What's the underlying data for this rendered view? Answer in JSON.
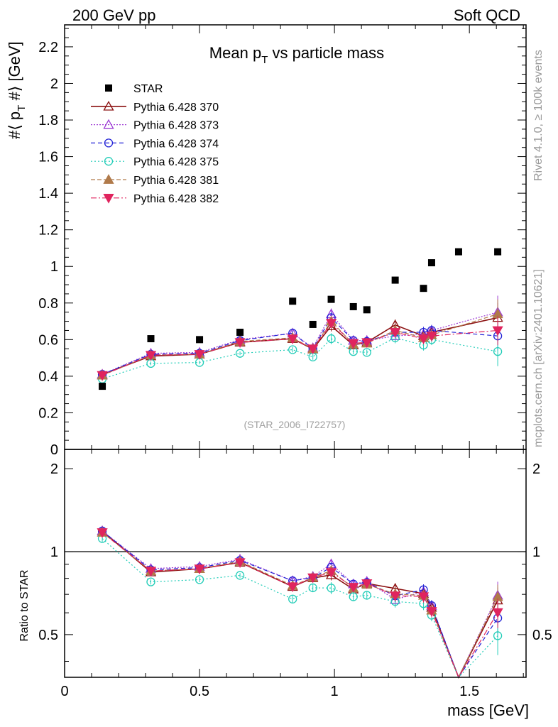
{
  "header": {
    "left": "200 GeV pp",
    "right": "Soft QCD"
  },
  "side_labels": {
    "top": "Rivet 4.1.0, ≥ 100k events",
    "bottom": "mcplots.cern.ch [arXiv:2401.10621]"
  },
  "chart_data": {
    "type": "scatter",
    "title": "Mean p",
    "title_sub": "T",
    "title_rest": " vs particle mass",
    "analysis": "(STAR_2006_I722757)",
    "xlabel": "mass [GeV]",
    "ylabel": "#⟨ p",
    "ylabel_sub": "T",
    "ylabel_rest": " #⟩ [GeV]",
    "ratio_ylabel": "Ratio to STAR",
    "xlim": [
      0,
      1.71
    ],
    "ylim": [
      0,
      2.32
    ],
    "ratio_ylim": [
      0.35,
      2.35
    ],
    "x_ticks": [
      "0",
      "0.5",
      "1",
      "1.5"
    ],
    "y_ticks": [
      "0",
      "0.2",
      "0.4",
      "0.6",
      "0.8",
      "1",
      "1.2",
      "1.4",
      "1.6",
      "1.8",
      "2",
      "2.2"
    ],
    "ratio_ticks": [
      "0.5",
      "1",
      "2"
    ],
    "x": [
      0.1396,
      0.3196,
      0.5,
      0.65,
      0.845,
      0.92,
      0.988,
      1.07,
      1.12,
      1.225,
      1.33,
      1.36,
      1.46,
      1.605
    ],
    "data": {
      "name": "STAR",
      "x": [
        0.1396,
        0.3196,
        0.5,
        0.65,
        0.845,
        0.92,
        0.988,
        1.07,
        1.12,
        1.225,
        1.33,
        1.36,
        1.46,
        1.605
      ],
      "values": [
        0.345,
        0.605,
        0.6,
        0.64,
        0.81,
        0.683,
        0.82,
        0.78,
        0.763,
        0.925,
        0.88,
        1.02,
        1.08,
        1.08
      ]
    },
    "series": [
      {
        "name": "Pythia 6.428 370",
        "color": "#8b1010",
        "dash": "",
        "marker": "triangle-open",
        "values": [
          0.41,
          0.51,
          0.52,
          0.585,
          0.605,
          0.548,
          0.675,
          0.57,
          0.585,
          0.68,
          0.62,
          0.64,
          null,
          0.72
        ],
        "errors": [
          0.01,
          0.01,
          0.01,
          0.01,
          0.015,
          0.015,
          0.03,
          0.015,
          0.015,
          0.03,
          0.03,
          0.03,
          null,
          0.08
        ]
      },
      {
        "name": "Pythia 6.428 373",
        "color": "#9d3ad4",
        "dash": "2,2",
        "marker": "triangle-open",
        "values": [
          0.41,
          0.525,
          0.53,
          0.6,
          0.635,
          0.555,
          0.74,
          0.595,
          0.595,
          0.62,
          0.63,
          0.65,
          null,
          0.75
        ],
        "errors": [
          0.01,
          0.01,
          0.01,
          0.01,
          0.015,
          0.015,
          0.03,
          0.015,
          0.015,
          0.03,
          0.03,
          0.03,
          null,
          0.09
        ]
      },
      {
        "name": "Pythia 6.428 374",
        "color": "#2222d6",
        "dash": "6,4",
        "marker": "circle-open",
        "values": [
          0.41,
          0.52,
          0.525,
          0.595,
          0.635,
          0.55,
          0.72,
          0.595,
          0.59,
          0.64,
          0.64,
          0.65,
          null,
          0.62
        ],
        "errors": [
          0.01,
          0.01,
          0.01,
          0.01,
          0.015,
          0.015,
          0.03,
          0.015,
          0.015,
          0.03,
          0.03,
          0.03,
          null,
          0.08
        ]
      },
      {
        "name": "Pythia 6.428 375",
        "color": "#22cdb8",
        "dash": "2,3",
        "marker": "circle-open",
        "values": [
          0.385,
          0.47,
          0.475,
          0.525,
          0.545,
          0.505,
          0.605,
          0.535,
          0.53,
          0.61,
          0.57,
          0.6,
          null,
          0.535
        ],
        "errors": [
          0.01,
          0.01,
          0.01,
          0.01,
          0.015,
          0.015,
          0.03,
          0.015,
          0.015,
          0.03,
          0.03,
          0.03,
          null,
          0.08
        ]
      },
      {
        "name": "Pythia 6.428 381",
        "color": "#b07a4a",
        "dash": "6,3",
        "marker": "triangle-filled",
        "values": [
          0.405,
          0.515,
          0.52,
          0.59,
          0.61,
          0.55,
          0.7,
          0.575,
          0.58,
          0.65,
          0.61,
          0.625,
          null,
          0.74
        ],
        "errors": [
          0.01,
          0.01,
          0.01,
          0.01,
          0.015,
          0.015,
          0.03,
          0.015,
          0.015,
          0.03,
          0.03,
          0.03,
          null,
          0.08
        ]
      },
      {
        "name": "Pythia 6.428 382",
        "color": "#e0245e",
        "dash": "8,3,2,3",
        "marker": "triangle-down-filled",
        "values": [
          0.405,
          0.515,
          0.52,
          0.585,
          0.605,
          0.55,
          0.69,
          0.58,
          0.585,
          0.64,
          0.605,
          0.62,
          null,
          0.65
        ],
        "errors": [
          0.01,
          0.01,
          0.01,
          0.01,
          0.015,
          0.015,
          0.03,
          0.015,
          0.015,
          0.03,
          0.03,
          0.03,
          null,
          0.08
        ]
      }
    ]
  }
}
